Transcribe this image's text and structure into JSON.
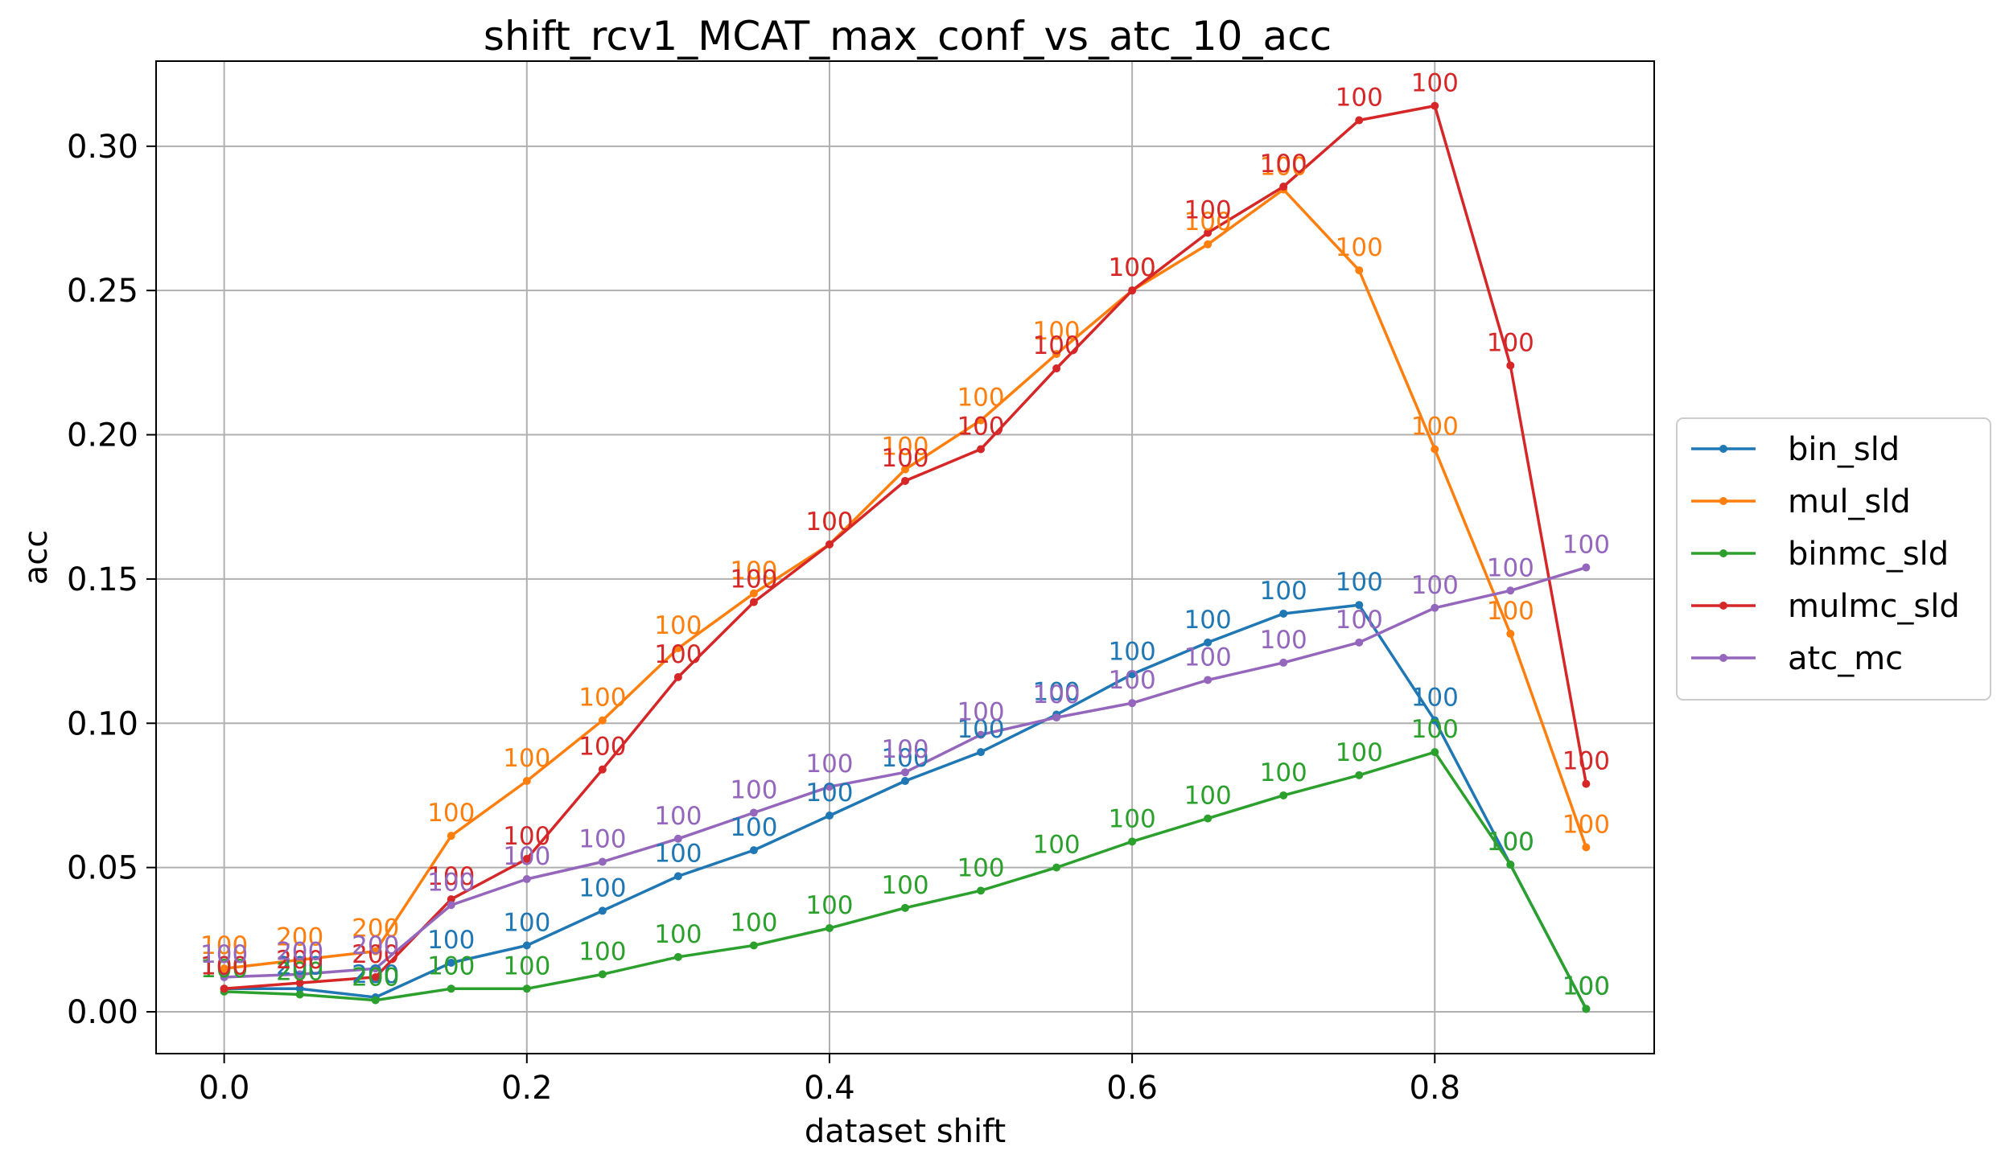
{
  "chart_data": {
    "type": "line",
    "title": "shift_rcv1_MCAT_max_conf_vs_atc_10_acc",
    "xlabel": "dataset shift",
    "ylabel": "acc",
    "xlim": [
      -0.045,
      0.945
    ],
    "ylim": [
      -0.0145,
      0.3295
    ],
    "xticks": [
      0.0,
      0.2,
      0.4,
      0.6,
      0.8
    ],
    "xtick_labels": [
      "0.0",
      "0.2",
      "0.4",
      "0.6",
      "0.8"
    ],
    "yticks": [
      0.0,
      0.05,
      0.1,
      0.15,
      0.2,
      0.25,
      0.3
    ],
    "ytick_labels": [
      "0.00",
      "0.05",
      "0.10",
      "0.15",
      "0.20",
      "0.25",
      "0.30"
    ],
    "grid": true,
    "legend": "outside-right",
    "x": [
      0.0,
      0.05,
      0.1,
      0.15,
      0.2,
      0.25,
      0.3,
      0.35,
      0.4,
      0.45,
      0.5,
      0.55,
      0.6,
      0.65,
      0.7,
      0.75,
      0.8,
      0.85,
      0.9
    ],
    "series": [
      {
        "name": "bin_sld",
        "color": "#1f77b4",
        "values": [
          0.008,
          0.008,
          0.005,
          0.017,
          0.023,
          0.035,
          0.047,
          0.056,
          0.068,
          0.08,
          0.09,
          0.103,
          0.117,
          0.128,
          0.138,
          0.141,
          0.101,
          0.051,
          0.001
        ],
        "labels": [
          "100",
          "200",
          "200",
          "100",
          "100",
          "100",
          "100",
          "100",
          "100",
          "100",
          "100",
          "100",
          "100",
          "100",
          "100",
          "100",
          "100",
          "100",
          "100"
        ]
      },
      {
        "name": "mul_sld",
        "color": "#ff7f0e",
        "values": [
          0.015,
          0.018,
          0.021,
          0.061,
          0.08,
          0.101,
          0.126,
          0.145,
          0.162,
          0.188,
          0.205,
          0.228,
          0.25,
          0.266,
          0.285,
          0.257,
          0.195,
          0.131,
          0.057
        ],
        "labels": [
          "100",
          "200",
          "200",
          "100",
          "100",
          "100",
          "100",
          "100",
          "100",
          "100",
          "100",
          "100",
          "100",
          "100",
          "100",
          "100",
          "100",
          "100",
          "100"
        ]
      },
      {
        "name": "binmc_sld",
        "color": "#2ca02c",
        "values": [
          0.007,
          0.006,
          0.004,
          0.008,
          0.008,
          0.013,
          0.019,
          0.023,
          0.029,
          0.036,
          0.042,
          0.05,
          0.059,
          0.067,
          0.075,
          0.082,
          0.09,
          0.051,
          0.001
        ],
        "labels": [
          "100",
          "200",
          "200",
          "100",
          "100",
          "100",
          "100",
          "100",
          "100",
          "100",
          "100",
          "100",
          "100",
          "100",
          "100",
          "100",
          "100",
          "100",
          "100"
        ]
      },
      {
        "name": "mulmc_sld",
        "color": "#d62728",
        "values": [
          0.008,
          0.01,
          0.012,
          0.039,
          0.053,
          0.084,
          0.116,
          0.142,
          0.162,
          0.184,
          0.195,
          0.223,
          0.25,
          0.27,
          0.286,
          0.309,
          0.314,
          0.224,
          0.079
        ],
        "labels": [
          "100",
          "200",
          "200",
          "100",
          "100",
          "100",
          "100",
          "100",
          "100",
          "100",
          "100",
          "100",
          "100",
          "100",
          "100",
          "100",
          "100",
          "100",
          "100"
        ]
      },
      {
        "name": "atc_mc",
        "color": "#9467bd",
        "values": [
          0.012,
          0.013,
          0.015,
          0.037,
          0.046,
          0.052,
          0.06,
          0.069,
          0.078,
          0.083,
          0.096,
          0.102,
          0.107,
          0.115,
          0.121,
          0.128,
          0.14,
          0.146,
          0.154
        ],
        "labels": [
          "100",
          "200",
          "200",
          "100",
          "100",
          "100",
          "100",
          "100",
          "100",
          "100",
          "100",
          "100",
          "100",
          "100",
          "100",
          "100",
          "100",
          "100",
          "100"
        ]
      }
    ]
  }
}
